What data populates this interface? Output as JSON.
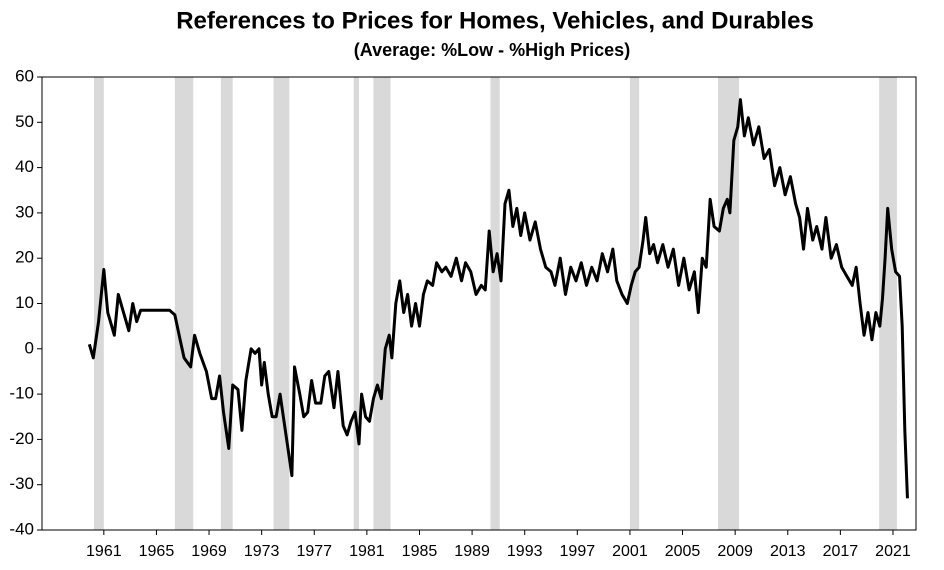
{
  "chart_data": {
    "type": "line",
    "title": "References to Prices for Homes, Vehicles, and Durables",
    "subtitle": "(Average:  %Low - %High Prices)",
    "x": [
      1959.9,
      1960.2,
      1960.6,
      1961.0,
      1961.3,
      1961.8,
      1962.1,
      1962.6,
      1962.9,
      1963.2,
      1963.5,
      1963.8,
      1965,
      1966,
      1966.4,
      1966.8,
      1967.1,
      1967.6,
      1967.9,
      1968.3,
      1968.8,
      1969.2,
      1969.5,
      1969.8,
      1970.1,
      1970.5,
      1970.8,
      1971.2,
      1971.5,
      1971.8,
      1972.2,
      1972.5,
      1972.8,
      1973.0,
      1973.2,
      1973.5,
      1973.8,
      1974.1,
      1974.4,
      1974.7,
      1975.0,
      1975.3,
      1975.5,
      1975.9,
      1976.2,
      1976.5,
      1976.8,
      1977.1,
      1977.5,
      1977.8,
      1978.1,
      1978.5,
      1978.8,
      1979.2,
      1979.5,
      1979.8,
      1980.1,
      1980.4,
      1980.6,
      1980.9,
      1981.2,
      1981.5,
      1981.8,
      1982.1,
      1982.4,
      1982.7,
      1982.9,
      1983.2,
      1983.5,
      1983.8,
      1984.1,
      1984.4,
      1984.7,
      1985.0,
      1985.3,
      1985.6,
      1986.0,
      1986.3,
      1986.7,
      1987.0,
      1987.4,
      1987.8,
      1988.2,
      1988.5,
      1988.9,
      1989.3,
      1989.7,
      1990.0,
      1990.3,
      1990.6,
      1990.9,
      1991.2,
      1991.5,
      1991.8,
      1992.1,
      1992.4,
      1992.7,
      1993.0,
      1993.4,
      1993.8,
      1994.2,
      1994.6,
      1995.0,
      1995.3,
      1995.7,
      1996.1,
      1996.5,
      1996.9,
      1997.3,
      1997.7,
      1998.1,
      1998.5,
      1998.9,
      1999.3,
      1999.7,
      2000.0,
      2000.4,
      2000.8,
      2001.1,
      2001.4,
      2001.7,
      2002.0,
      2002.2,
      2002.5,
      2002.8,
      2003.1,
      2003.5,
      2003.9,
      2004.3,
      2004.7,
      2005.1,
      2005.5,
      2005.9,
      2006.2,
      2006.5,
      2006.8,
      2007.1,
      2007.4,
      2007.8,
      2008.1,
      2008.4,
      2008.6,
      2008.9,
      2009.2,
      2009.4,
      2009.7,
      2010.0,
      2010.4,
      2010.8,
      2011.2,
      2011.6,
      2012.0,
      2012.4,
      2012.8,
      2013.2,
      2013.6,
      2013.9,
      2014.2,
      2014.5,
      2014.9,
      2015.2,
      2015.6,
      2015.9,
      2016.3,
      2016.7,
      2017.1,
      2017.5,
      2017.9,
      2018.2,
      2018.5,
      2018.8,
      2019.1,
      2019.4,
      2019.7,
      2020.0,
      2020.2,
      2020.4,
      2020.6,
      2020.9,
      2021.2,
      2021.5,
      2021.7,
      2021.9,
      2022.1
    ],
    "values": [
      1,
      -2,
      6,
      17.5,
      8,
      3,
      12,
      7,
      4,
      10,
      6,
      8.5,
      8.5,
      8.5,
      7.5,
      2,
      -2,
      -4,
      3,
      -1,
      -5,
      -11,
      -11,
      -6,
      -14,
      -22,
      -8,
      -9,
      -18,
      -7,
      0,
      -1,
      0,
      -8,
      -3,
      -10,
      -15,
      -15,
      -10,
      -16,
      -22,
      -28,
      -4,
      -10,
      -15,
      -14,
      -7,
      -12,
      -12,
      -6,
      -5,
      -13,
      -5,
      -17,
      -19,
      -16,
      -14,
      -21,
      -10,
      -15,
      -16,
      -11,
      -8,
      -11,
      0,
      3,
      -2,
      10,
      15,
      8,
      12,
      5,
      10,
      5,
      12,
      15,
      14,
      19,
      17,
      18,
      16,
      20,
      15,
      19,
      17,
      12,
      14,
      13,
      26,
      17,
      21,
      15,
      32,
      35,
      27,
      31,
      25,
      30,
      24,
      28,
      22,
      18,
      17,
      14,
      20,
      12,
      18,
      15,
      19,
      14,
      18,
      15,
      21,
      17,
      22,
      15,
      12,
      10,
      14,
      17,
      18,
      24,
      29,
      21,
      23,
      19,
      23,
      18,
      22,
      14,
      20,
      13,
      17,
      8,
      20,
      18,
      33,
      27,
      26,
      31,
      33,
      30,
      46,
      49,
      55,
      47,
      51,
      45,
      49,
      42,
      44,
      36,
      40,
      34,
      38,
      32,
      29,
      22,
      31,
      24,
      27,
      22,
      29,
      20,
      23,
      18,
      16,
      14,
      18,
      10,
      3,
      8,
      2,
      8,
      5,
      11,
      20,
      31,
      22,
      17,
      16,
      5,
      -18,
      -33
    ],
    "color": "#000000",
    "shaded_periods": [
      [
        1960.25,
        1961.0
      ],
      [
        1966.4,
        1967.8
      ],
      [
        1969.9,
        1970.8
      ],
      [
        1973.9,
        1975.1
      ],
      [
        1980.0,
        1980.4
      ],
      [
        1981.5,
        1982.8
      ],
      [
        1990.4,
        1991.1
      ],
      [
        2001.0,
        2001.7
      ],
      [
        2007.7,
        2009.3
      ],
      [
        2019.95,
        2021.3
      ]
    ],
    "shade_color": "#d9d9d9",
    "xlim": [
      1956.3,
      2022.75
    ],
    "xticks": [
      1961,
      1965,
      1969,
      1973,
      1977,
      1981,
      1985,
      1989,
      1993,
      1997,
      2001,
      2005,
      2009,
      2013,
      2017,
      2021
    ],
    "ylim": [
      -40,
      60
    ],
    "yticks": [
      -40,
      -30,
      -20,
      -10,
      0,
      10,
      20,
      30,
      40,
      50,
      60
    ]
  }
}
